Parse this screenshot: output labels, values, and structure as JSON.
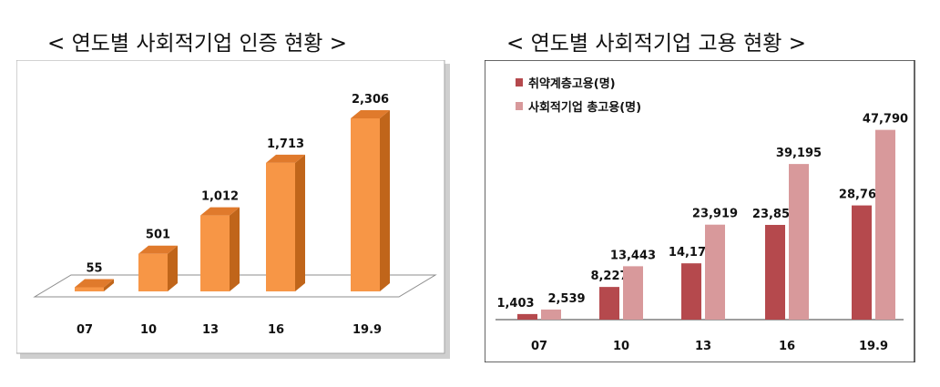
{
  "titles": {
    "left": "< 연도별 사회적기업 인증 현황 >",
    "right": "< 연도별 사회적기업 고용 현황 >"
  },
  "chart_data": [
    {
      "type": "bar",
      "categories": [
        "07",
        "10",
        "13",
        "16",
        "19.9"
      ],
      "values": [
        55,
        501,
        1012,
        1713,
        2306
      ],
      "data_labels": [
        "55",
        "501",
        "1,012",
        "1,713",
        "2,306"
      ],
      "ylim": [
        0,
        2500
      ],
      "grid": false,
      "colors": {
        "front": "#f79646",
        "side": "#c0651a",
        "top": "#e07a2c"
      }
    },
    {
      "type": "bar",
      "categories": [
        "07",
        "10",
        "13",
        "16",
        "19.9"
      ],
      "series": [
        {
          "name": "취약계층고용(명)",
          "values": [
            1403,
            8227,
            14179,
            23858,
            28764
          ],
          "labels": [
            "1,403",
            "8,227",
            "14,179",
            "23,858",
            "28,764"
          ],
          "color": "#b5494d"
        },
        {
          "name": "사회적기업 총고용(명)",
          "values": [
            2539,
            13443,
            23919,
            39195,
            47790
          ],
          "labels": [
            "2,539",
            "13,443",
            "23,919",
            "39,195",
            "47,790"
          ],
          "color": "#d8999b"
        }
      ],
      "ylim": [
        0,
        50000
      ],
      "grid": false,
      "legend": "top-left"
    }
  ]
}
